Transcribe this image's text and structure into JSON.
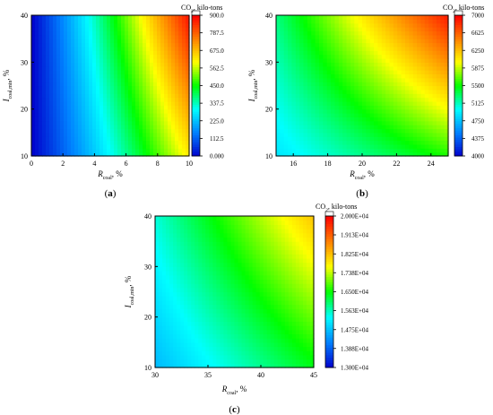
{
  "colors": {
    "colormap": [
      "#0000cc",
      "#0080ff",
      "#00ffff",
      "#00ff00",
      "#ffff00",
      "#ff8000",
      "#ff0000"
    ],
    "frame": "#000000"
  },
  "chart_data": [
    {
      "type": "heatmap",
      "panel_label": "a",
      "xlabel_main": "R",
      "xlabel_sub": "coal",
      "xlabel_unit": ", %",
      "ylabel_main": "I",
      "ylabel_sub": "coal,min",
      "ylabel_unit": ", %",
      "colorbar_title_main": "CO",
      "colorbar_title_sub": "2",
      "colorbar_title_rest": ", kilo-tons",
      "xlim": [
        0,
        10
      ],
      "ylim": [
        10,
        40
      ],
      "xticks": [
        0,
        2,
        4,
        6,
        8,
        10
      ],
      "yticks": [
        10,
        20,
        30,
        40
      ],
      "xtick_labels": [
        "0",
        "2",
        "4",
        "6",
        "8",
        "10"
      ],
      "ytick_labels": [
        "10",
        "20",
        "30",
        "40"
      ],
      "zlim": [
        0,
        900
      ],
      "colorbar_ticks": [
        0,
        112.5,
        225,
        337.5,
        450,
        562.5,
        675,
        787.5,
        900
      ],
      "colorbar_labels": [
        "0.000",
        "112.5",
        "225.0",
        "337.5",
        "450.0",
        "562.5",
        "675.0",
        "787.5",
        "900.0"
      ],
      "grid": false,
      "legend": "colorbar-right",
      "z_corners": {
        "x_min_y_min": 0,
        "x_max_y_min": 620,
        "x_min_y_max": 0,
        "x_max_y_max": 880
      }
    },
    {
      "type": "heatmap",
      "panel_label": "b",
      "xlabel_main": "R",
      "xlabel_sub": "coal",
      "xlabel_unit": ", %",
      "ylabel_main": "I",
      "ylabel_sub": "coal,min",
      "ylabel_unit": ", %",
      "colorbar_title_main": "CO",
      "colorbar_title_sub": "2",
      "colorbar_title_rest": ", kilo-tons",
      "xlim": [
        15,
        25
      ],
      "ylim": [
        10,
        40
      ],
      "xticks": [
        16,
        18,
        20,
        22,
        24
      ],
      "yticks": [
        10,
        20,
        30,
        40
      ],
      "xtick_labels": [
        "16",
        "18",
        "20",
        "22",
        "24"
      ],
      "ytick_labels": [
        "10",
        "20",
        "30",
        "40"
      ],
      "zlim": [
        4000,
        7000
      ],
      "colorbar_ticks": [
        4000,
        4375,
        4750,
        5125,
        5500,
        5875,
        6250,
        6625,
        7000
      ],
      "colorbar_labels": [
        "4000",
        "4375",
        "4750",
        "5125",
        "5500",
        "5875",
        "6250",
        "6625",
        "7000"
      ],
      "grid": false,
      "legend": "colorbar-right",
      "z_corners": {
        "x_min_y_min": 4900,
        "x_max_y_min": 5550,
        "x_min_y_max": 5250,
        "x_max_y_max": 6900
      }
    },
    {
      "type": "heatmap",
      "panel_label": "c",
      "xlabel_main": "R",
      "xlabel_sub": "coal",
      "xlabel_unit": ", %",
      "ylabel_main": "I",
      "ylabel_sub": "coal,min",
      "ylabel_unit": ", %",
      "colorbar_title_main": "CO",
      "colorbar_title_sub": "2",
      "colorbar_title_rest": ", kilo-tons",
      "xlim": [
        30,
        45
      ],
      "ylim": [
        10,
        40
      ],
      "xticks": [
        30,
        35,
        40,
        45
      ],
      "yticks": [
        10,
        20,
        30,
        40
      ],
      "xtick_labels": [
        "30",
        "35",
        "40",
        "45"
      ],
      "ytick_labels": [
        "10",
        "20",
        "30",
        "40"
      ],
      "zlim": [
        13000,
        20000
      ],
      "colorbar_ticks": [
        13000,
        13880,
        14750,
        15630,
        16500,
        17380,
        18250,
        19130,
        20000
      ],
      "colorbar_labels": [
        "1.300E+04",
        "1.388E+04",
        "1.475E+04",
        "1.563E+04",
        "1.650E+04",
        "1.738E+04",
        "1.825E+04",
        "1.913E+04",
        "2.000E+04"
      ],
      "grid": false,
      "legend": "colorbar-right",
      "z_corners": {
        "x_min_y_min": 14700,
        "x_max_y_min": 16400,
        "x_min_y_max": 15500,
        "x_max_y_max": 18200
      }
    }
  ]
}
